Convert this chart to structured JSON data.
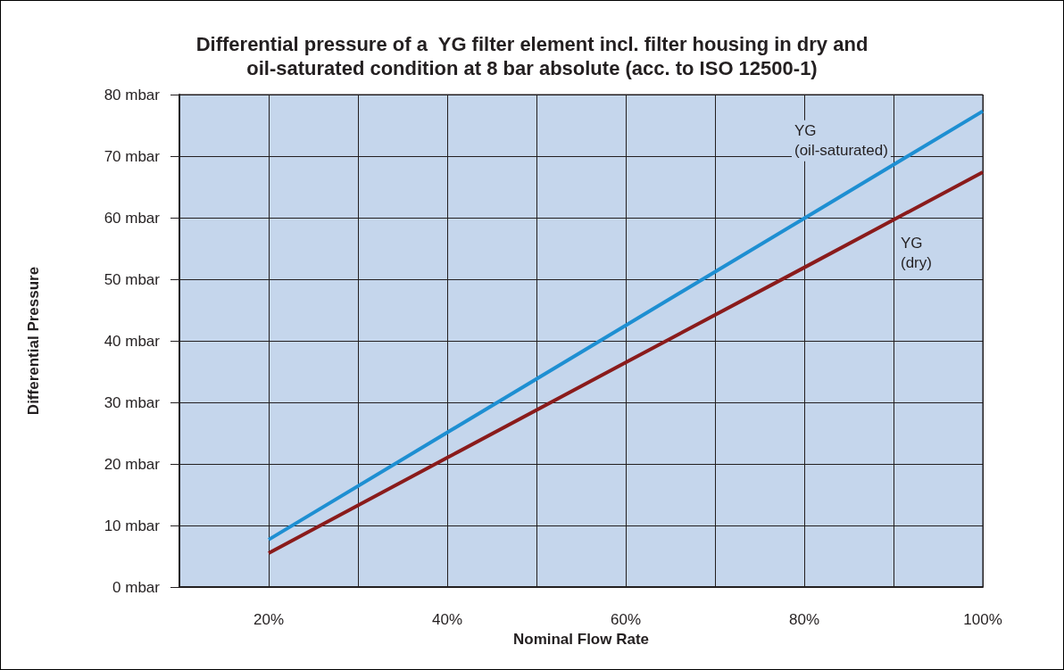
{
  "chart_data": {
    "type": "line",
    "title": "Differential pressure of a  YG filter element incl. filter housing in dry and\noil-saturated condition at 8 bar absolute (acc. to ISO 12500-1)",
    "xlabel": "Nominal Flow Rate",
    "ylabel": "Differential Pressure",
    "x": [
      20,
      40,
      60,
      80,
      100
    ],
    "series": [
      {
        "name": "YG (oil-saturated)",
        "color": "#1e8fd2",
        "values": [
          7.7,
          25.1,
          42.5,
          59.9,
          77.3
        ]
      },
      {
        "name": "YG (dry)",
        "color": "#8a1b1b",
        "values": [
          5.5,
          21,
          36.5,
          51.9,
          67.4
        ]
      }
    ],
    "xlim": [
      10,
      100
    ],
    "xticks": [
      {
        "value": 10,
        "label": null
      },
      {
        "value": 20,
        "label": "20%"
      },
      {
        "value": 30,
        "label": null
      },
      {
        "value": 40,
        "label": "40%"
      },
      {
        "value": 50,
        "label": null
      },
      {
        "value": 60,
        "label": "60%"
      },
      {
        "value": 70,
        "label": null
      },
      {
        "value": 80,
        "label": "80%"
      },
      {
        "value": 90,
        "label": null
      },
      {
        "value": 100,
        "label": "100%"
      }
    ],
    "ylim": [
      0,
      80
    ],
    "yticks": [
      {
        "value": 0,
        "label": "0 mbar"
      },
      {
        "value": 10,
        "label": "10 mbar"
      },
      {
        "value": 20,
        "label": "20 mbar"
      },
      {
        "value": 30,
        "label": "30 mbar"
      },
      {
        "value": 40,
        "label": "40 mbar"
      },
      {
        "value": 50,
        "label": "50 mbar"
      },
      {
        "value": 60,
        "label": "60 mbar"
      },
      {
        "value": 70,
        "label": "70 mbar"
      },
      {
        "value": 80,
        "label": "80 mbar"
      }
    ],
    "grid": true,
    "legend": false,
    "marker": "none",
    "line_style": "solid"
  }
}
